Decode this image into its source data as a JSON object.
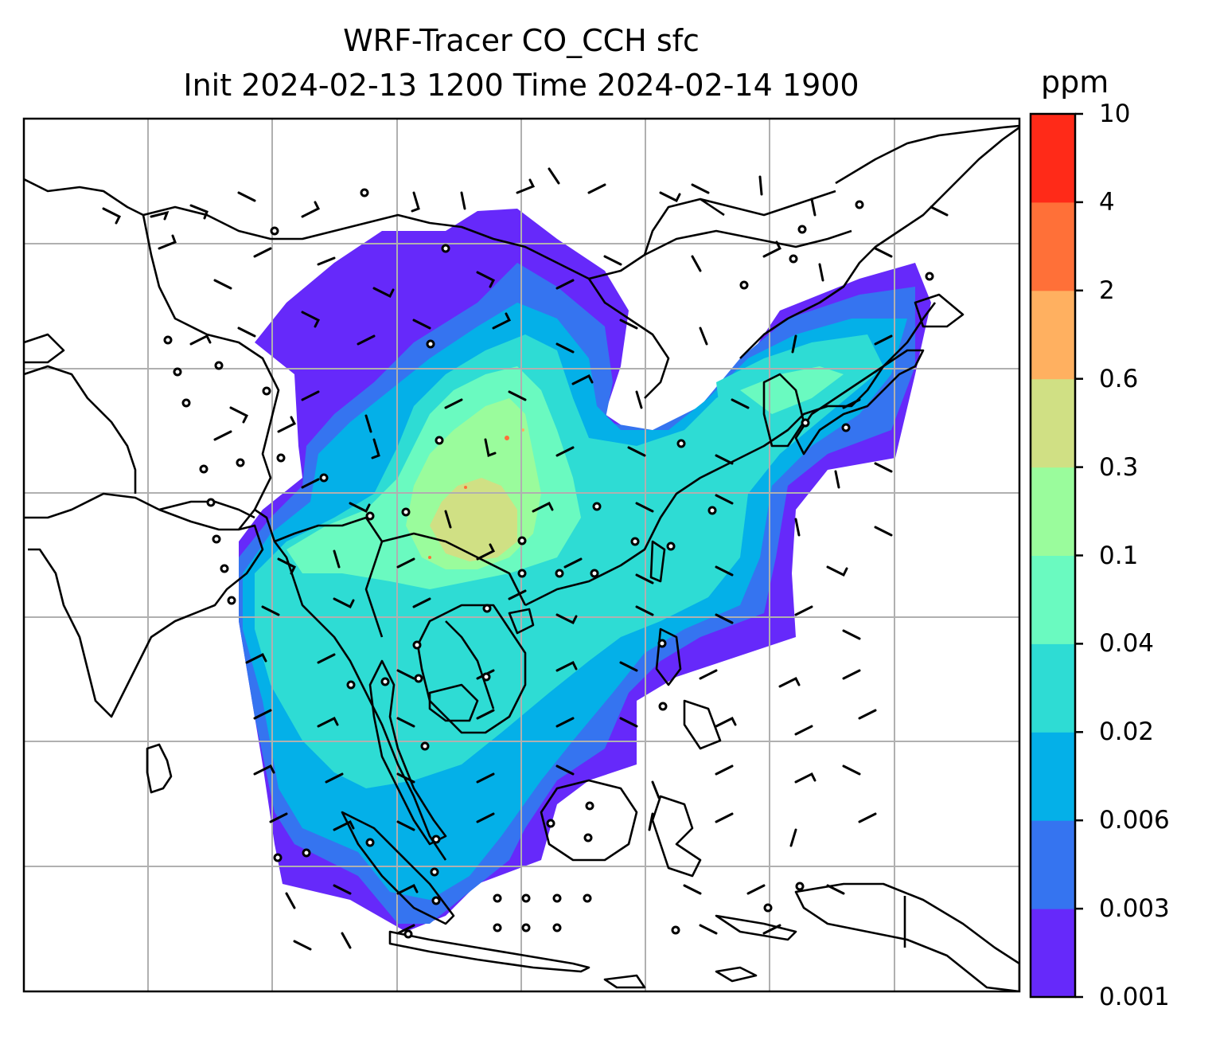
{
  "title_line1": "WRF-Tracer CO_CCH sfc",
  "title_line2": "Init 2024-02-13 1200 Time 2024-02-14 1900",
  "colorbar": {
    "unit": "ppm",
    "ticks": [
      "0.001",
      "0.003",
      "0.006",
      "0.02",
      "0.04",
      "0.1",
      "0.3",
      "0.6",
      "2",
      "4",
      "10"
    ],
    "colors": [
      "#6629fa",
      "#3574f0",
      "#04b0e8",
      "#2edcd4",
      "#6afac0",
      "#9afc9c",
      "#d0e084",
      "#ffb060",
      "#ff7038",
      "#ff2a18"
    ]
  },
  "map": {
    "field_colors": {
      "lowest": "#6629fa",
      "low": "#3574f0",
      "mid": "#04b0e8",
      "midhigh": "#2edcd4",
      "high": "#6afac0",
      "higher": "#9afc9c",
      "peak": "#d0e084",
      "hotspot": "#ff7038"
    },
    "gridline_color": "#b0b0b0",
    "coastline_color": "#000000"
  }
}
